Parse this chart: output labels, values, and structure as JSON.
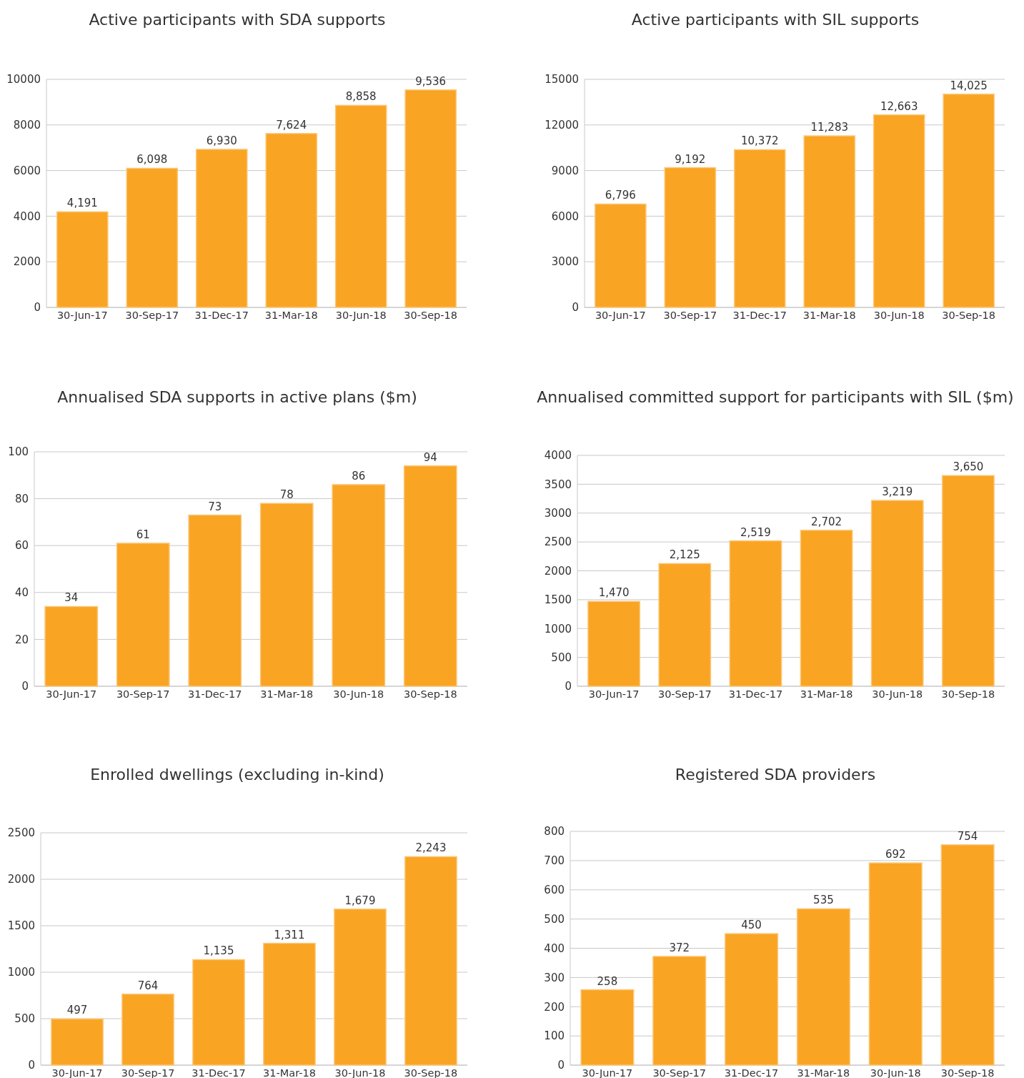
{
  "chart_data": [
    {
      "type": "bar",
      "title": "Active participants with SDA supports",
      "categories": [
        "30-Jun-17",
        "30-Sep-17",
        "31-Dec-17",
        "31-Mar-18",
        "30-Jun-18",
        "30-Sep-18"
      ],
      "values": [
        4191,
        6098,
        6930,
        7624,
        8858,
        9536
      ],
      "value_labels": [
        "4,191",
        "6,098",
        "6,930",
        "7,624",
        "8,858",
        "9,536"
      ],
      "color": "#f9a423",
      "ylim": [
        0,
        10000
      ],
      "yticks": [
        0,
        2000,
        4000,
        6000,
        8000,
        10000
      ],
      "grid": "y"
    },
    {
      "type": "bar",
      "title": "Active participants with SIL supports",
      "categories": [
        "30-Jun-17",
        "30-Sep-17",
        "31-Dec-17",
        "31-Mar-18",
        "30-Jun-18",
        "30-Sep-18"
      ],
      "values": [
        6796,
        9192,
        10372,
        11283,
        12663,
        14025
      ],
      "value_labels": [
        "6,796",
        "9,192",
        "10,372",
        "11,283",
        "12,663",
        "14,025"
      ],
      "color": "#f9a423",
      "ylim": [
        0,
        15000
      ],
      "yticks": [
        0,
        3000,
        6000,
        9000,
        12000,
        15000
      ],
      "grid": "y"
    },
    {
      "type": "bar",
      "title": "Annualised SDA supports in active plans ($m)",
      "categories": [
        "30-Jun-17",
        "30-Sep-17",
        "31-Dec-17",
        "31-Mar-18",
        "30-Jun-18",
        "30-Sep-18"
      ],
      "values": [
        34,
        61,
        73,
        78,
        86,
        94
      ],
      "value_labels": [
        "34",
        "61",
        "73",
        "78",
        "86",
        "94"
      ],
      "color": "#f9a423",
      "ylim": [
        0,
        100
      ],
      "yticks": [
        0,
        20,
        40,
        60,
        80,
        100
      ],
      "grid": "y"
    },
    {
      "type": "bar",
      "title": "Annualised committed support for participants with SIL ($m)",
      "categories": [
        "30-Jun-17",
        "30-Sep-17",
        "31-Dec-17",
        "31-Mar-18",
        "30-Jun-18",
        "30-Sep-18"
      ],
      "values": [
        1470,
        2125,
        2519,
        2702,
        3219,
        3650
      ],
      "value_labels": [
        "1,470",
        "2,125",
        "2,519",
        "2,702",
        "3,219",
        "3,650"
      ],
      "color": "#f9a423",
      "ylim": [
        0,
        4000
      ],
      "yticks": [
        0,
        500,
        1000,
        1500,
        2000,
        2500,
        3000,
        3500,
        4000
      ],
      "grid": "y"
    },
    {
      "type": "bar",
      "title": "Enrolled dwellings (excluding in-kind)",
      "categories": [
        "30-Jun-17",
        "30-Sep-17",
        "31-Dec-17",
        "31-Mar-18",
        "30-Jun-18",
        "30-Sep-18"
      ],
      "values": [
        497,
        764,
        1135,
        1311,
        1679,
        2243
      ],
      "value_labels": [
        "497",
        "764",
        "1,135",
        "1,311",
        "1,679",
        "2,243"
      ],
      "color": "#f9a423",
      "ylim": [
        0,
        2500
      ],
      "yticks": [
        0,
        500,
        1000,
        1500,
        2000,
        2500
      ],
      "grid": "y"
    },
    {
      "type": "bar",
      "title": "Registered SDA providers",
      "categories": [
        "30-Jun-17",
        "30-Sep-17",
        "31-Dec-17",
        "31-Mar-18",
        "30-Jun-18",
        "30-Sep-18"
      ],
      "values": [
        258,
        372,
        450,
        535,
        692,
        754
      ],
      "value_labels": [
        "258",
        "372",
        "450",
        "535",
        "692",
        "754"
      ],
      "color": "#f9a423",
      "ylim": [
        0,
        800
      ],
      "yticks": [
        0,
        100,
        200,
        300,
        400,
        500,
        600,
        700,
        800
      ],
      "grid": "y"
    }
  ]
}
